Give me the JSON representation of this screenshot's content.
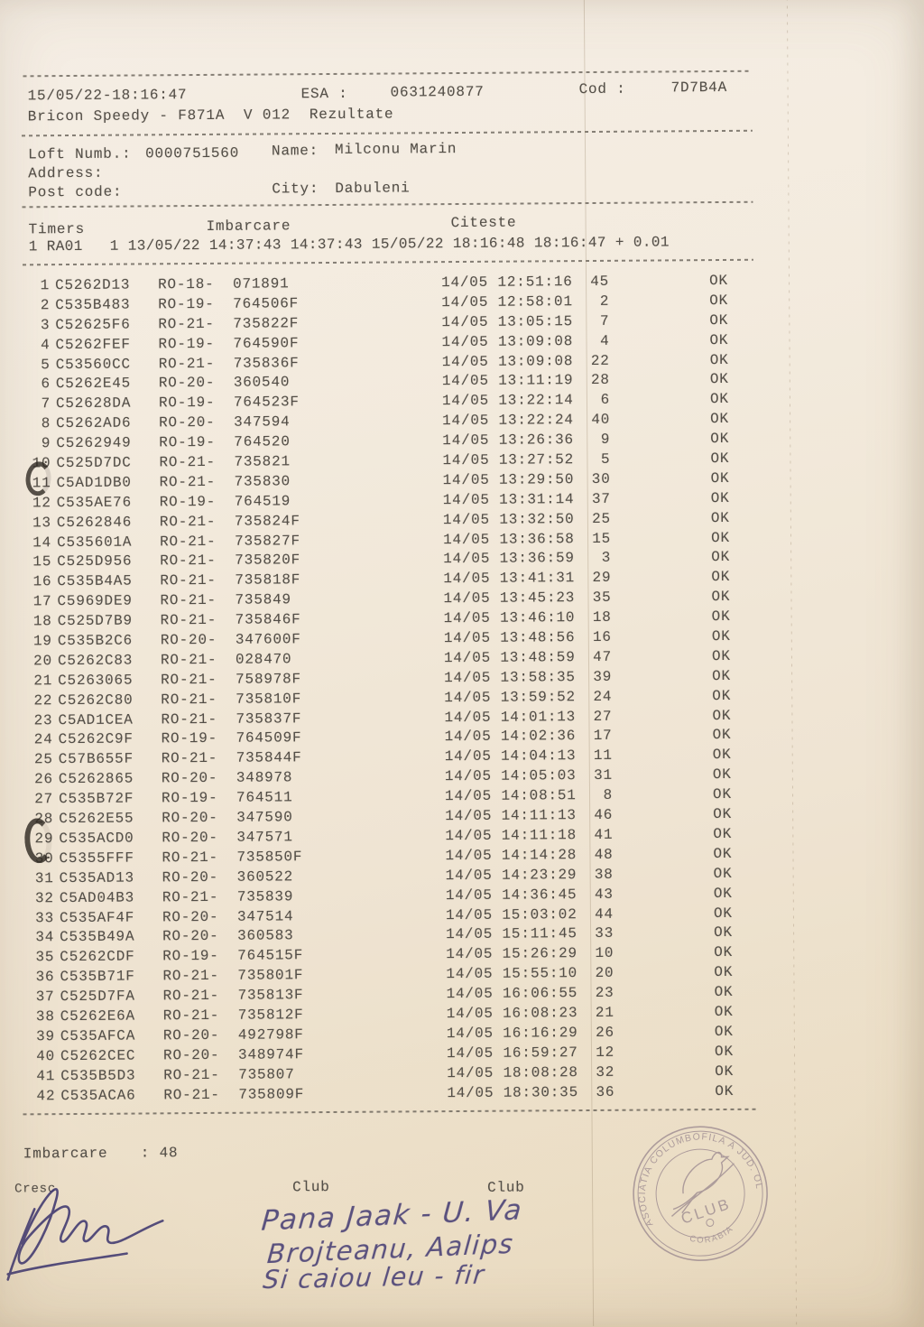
{
  "header": {
    "datetime": "15/05/22-18:16:47",
    "esa_label": "ESA :",
    "esa_value": "0631240877",
    "cod_label": "Cod :",
    "cod_value": "7D7B4A",
    "device_line": "Bricon Speedy - F871A  V 012  Rezultate",
    "loft_label": "Loft Numb.:",
    "loft_value": "0000751560",
    "name_label": "Name:",
    "name_value": "Milconu Marin",
    "address_label": "Address:",
    "postcode_label": "Post code:",
    "city_label": "City:",
    "city_value": "Dabuleni"
  },
  "timers": {
    "timers_label": "Timers",
    "imbarcare_label": "Imbarcare",
    "citeste_label": "Citeste",
    "row": "1 RA01   1 13/05/22 14:37:43 14:37:43 15/05/22 18:16:48 18:16:47 + 0.01"
  },
  "table": {
    "rows": [
      {
        "pos": "1",
        "ring": "C5262D13",
        "series": "RO-18-",
        "number": "071891",
        "datetime": "14/05 12:51:16",
        "order": "45",
        "status": "OK"
      },
      {
        "pos": "2",
        "ring": "C535B483",
        "series": "RO-19-",
        "number": "764506F",
        "datetime": "14/05 12:58:01",
        "order": "2",
        "status": "OK"
      },
      {
        "pos": "3",
        "ring": "C52625F6",
        "series": "RO-21-",
        "number": "735822F",
        "datetime": "14/05 13:05:15",
        "order": "7",
        "status": "OK"
      },
      {
        "pos": "4",
        "ring": "C5262FEF",
        "series": "RO-19-",
        "number": "764590F",
        "datetime": "14/05 13:09:08",
        "order": "4",
        "status": "OK"
      },
      {
        "pos": "5",
        "ring": "C53560CC",
        "series": "RO-21-",
        "number": "735836F",
        "datetime": "14/05 13:09:08",
        "order": "22",
        "status": "OK"
      },
      {
        "pos": "6",
        "ring": "C5262E45",
        "series": "RO-20-",
        "number": "360540",
        "datetime": "14/05 13:11:19",
        "order": "28",
        "status": "OK"
      },
      {
        "pos": "7",
        "ring": "C52628DA",
        "series": "RO-19-",
        "number": "764523F",
        "datetime": "14/05 13:22:14",
        "order": "6",
        "status": "OK"
      },
      {
        "pos": "8",
        "ring": "C5262AD6",
        "series": "RO-20-",
        "number": "347594",
        "datetime": "14/05 13:22:24",
        "order": "40",
        "status": "OK"
      },
      {
        "pos": "9",
        "ring": "C5262949",
        "series": "RO-19-",
        "number": "764520",
        "datetime": "14/05 13:26:36",
        "order": "9",
        "status": "OK"
      },
      {
        "pos": "10",
        "ring": "C525D7DC",
        "series": "RO-21-",
        "number": "735821",
        "datetime": "14/05 13:27:52",
        "order": "5",
        "status": "OK"
      },
      {
        "pos": "11",
        "ring": "C5AD1DB0",
        "series": "RO-21-",
        "number": "735830",
        "datetime": "14/05 13:29:50",
        "order": "30",
        "status": "OK"
      },
      {
        "pos": "12",
        "ring": "C535AE76",
        "series": "RO-19-",
        "number": "764519",
        "datetime": "14/05 13:31:14",
        "order": "37",
        "status": "OK"
      },
      {
        "pos": "13",
        "ring": "C5262846",
        "series": "RO-21-",
        "number": "735824F",
        "datetime": "14/05 13:32:50",
        "order": "25",
        "status": "OK"
      },
      {
        "pos": "14",
        "ring": "C535601A",
        "series": "RO-21-",
        "number": "735827F",
        "datetime": "14/05 13:36:58",
        "order": "15",
        "status": "OK"
      },
      {
        "pos": "15",
        "ring": "C525D956",
        "series": "RO-21-",
        "number": "735820F",
        "datetime": "14/05 13:36:59",
        "order": "3",
        "status": "OK"
      },
      {
        "pos": "16",
        "ring": "C535B4A5",
        "series": "RO-21-",
        "number": "735818F",
        "datetime": "14/05 13:41:31",
        "order": "29",
        "status": "OK"
      },
      {
        "pos": "17",
        "ring": "C5969DE9",
        "series": "RO-21-",
        "number": "735849",
        "datetime": "14/05 13:45:23",
        "order": "35",
        "status": "OK"
      },
      {
        "pos": "18",
        "ring": "C525D7B9",
        "series": "RO-21-",
        "number": "735846F",
        "datetime": "14/05 13:46:10",
        "order": "18",
        "status": "OK"
      },
      {
        "pos": "19",
        "ring": "C535B2C6",
        "series": "RO-20-",
        "number": "347600F",
        "datetime": "14/05 13:48:56",
        "order": "16",
        "status": "OK"
      },
      {
        "pos": "20",
        "ring": "C5262C83",
        "series": "RO-21-",
        "number": "028470",
        "datetime": "14/05 13:48:59",
        "order": "47",
        "status": "OK"
      },
      {
        "pos": "21",
        "ring": "C5263065",
        "series": "RO-21-",
        "number": "758978F",
        "datetime": "14/05 13:58:35",
        "order": "39",
        "status": "OK"
      },
      {
        "pos": "22",
        "ring": "C5262C80",
        "series": "RO-21-",
        "number": "735810F",
        "datetime": "14/05 13:59:52",
        "order": "24",
        "status": "OK"
      },
      {
        "pos": "23",
        "ring": "C5AD1CEA",
        "series": "RO-21-",
        "number": "735837F",
        "datetime": "14/05 14:01:13",
        "order": "27",
        "status": "OK"
      },
      {
        "pos": "24",
        "ring": "C5262C9F",
        "series": "RO-19-",
        "number": "764509F",
        "datetime": "14/05 14:02:36",
        "order": "17",
        "status": "OK"
      },
      {
        "pos": "25",
        "ring": "C57B655F",
        "series": "RO-21-",
        "number": "735844F",
        "datetime": "14/05 14:04:13",
        "order": "11",
        "status": "OK"
      },
      {
        "pos": "26",
        "ring": "C5262865",
        "series": "RO-20-",
        "number": "348978",
        "datetime": "14/05 14:05:03",
        "order": "31",
        "status": "OK"
      },
      {
        "pos": "27",
        "ring": "C535B72F",
        "series": "RO-19-",
        "number": "764511",
        "datetime": "14/05 14:08:51",
        "order": "8",
        "status": "OK"
      },
      {
        "pos": "28",
        "ring": "C5262E55",
        "series": "RO-20-",
        "number": "347590",
        "datetime": "14/05 14:11:13",
        "order": "46",
        "status": "OK"
      },
      {
        "pos": "29",
        "ring": "C535ACD0",
        "series": "RO-20-",
        "number": "347571",
        "datetime": "14/05 14:11:18",
        "order": "41",
        "status": "OK"
      },
      {
        "pos": "30",
        "ring": "C5355FFF",
        "series": "RO-21-",
        "number": "735850F",
        "datetime": "14/05 14:14:28",
        "order": "48",
        "status": "OK"
      },
      {
        "pos": "31",
        "ring": "C535AD13",
        "series": "RO-20-",
        "number": "360522",
        "datetime": "14/05 14:23:29",
        "order": "38",
        "status": "OK"
      },
      {
        "pos": "32",
        "ring": "C5AD04B3",
        "series": "RO-21-",
        "number": "735839",
        "datetime": "14/05 14:36:45",
        "order": "43",
        "status": "OK"
      },
      {
        "pos": "33",
        "ring": "C535AF4F",
        "series": "RO-20-",
        "number": "347514",
        "datetime": "14/05 15:03:02",
        "order": "44",
        "status": "OK"
      },
      {
        "pos": "34",
        "ring": "C535B49A",
        "series": "RO-20-",
        "number": "360583",
        "datetime": "14/05 15:11:45",
        "order": "33",
        "status": "OK"
      },
      {
        "pos": "35",
        "ring": "C5262CDF",
        "series": "RO-19-",
        "number": "764515F",
        "datetime": "14/05 15:26:29",
        "order": "10",
        "status": "OK"
      },
      {
        "pos": "36",
        "ring": "C535B71F",
        "series": "RO-21-",
        "number": "735801F",
        "datetime": "14/05 15:55:10",
        "order": "20",
        "status": "OK"
      },
      {
        "pos": "37",
        "ring": "C525D7FA",
        "series": "RO-21-",
        "number": "735813F",
        "datetime": "14/05 16:06:55",
        "order": "23",
        "status": "OK"
      },
      {
        "pos": "38",
        "ring": "C5262E6A",
        "series": "RO-21-",
        "number": "735812F",
        "datetime": "14/05 16:08:23",
        "order": "21",
        "status": "OK"
      },
      {
        "pos": "39",
        "ring": "C535AFCA",
        "series": "RO-20-",
        "number": "492798F",
        "datetime": "14/05 16:16:29",
        "order": "26",
        "status": "OK"
      },
      {
        "pos": "40",
        "ring": "C5262CEC",
        "series": "RO-20-",
        "number": "348974F",
        "datetime": "14/05 16:59:27",
        "order": "12",
        "status": "OK"
      },
      {
        "pos": "41",
        "ring": "C535B5D3",
        "series": "RO-21-",
        "number": "735807",
        "datetime": "14/05 18:08:28",
        "order": "32",
        "status": "OK"
      },
      {
        "pos": "42",
        "ring": "C535ACA6",
        "series": "RO-21-",
        "number": "735809F",
        "datetime": "14/05 18:30:35",
        "order": "36",
        "status": "OK"
      }
    ]
  },
  "footer": {
    "imbarcare_label": "Imbarcare",
    "imbarcare_value": ": 48",
    "cresc_label": "Cresc",
    "club_label_1": "Club",
    "club_label_2": "Club",
    "handwriting_line1": "Pana Jaak - U. Va",
    "handwriting_line2": "Brojteanu, Aalips",
    "handwriting_line3": "Si caiou leu - fir",
    "stamp": {
      "ring_text": "ASOCIATIA COLUMBOFILA A JUD. OLT",
      "club": "CLUB",
      "city": "CORABIA"
    }
  },
  "colors": {
    "paper": "#f0e7d8",
    "ink": "#534e47",
    "pen_ink": "#4b4277",
    "stamp_ink": "#8d7b87"
  }
}
